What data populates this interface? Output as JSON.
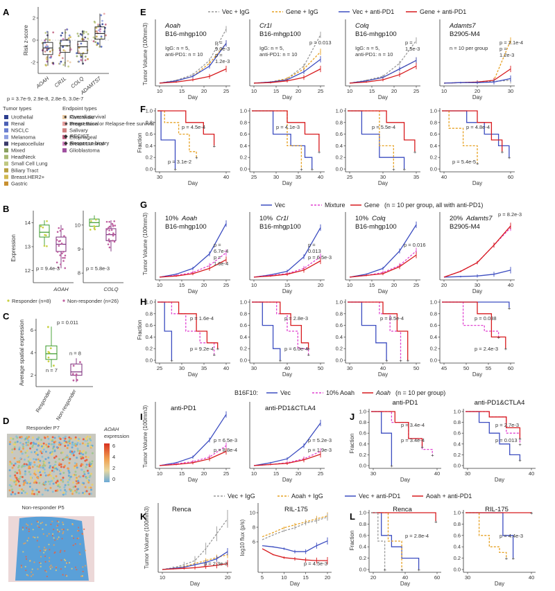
{
  "colors": {
    "vec": "#3b4cc0",
    "gene": "#d7191c",
    "vec_igg": "#999999",
    "gene_igg": "#e6a020",
    "mixture": "#e040d0",
    "box_green": "#3a9a2a",
    "box_purple": "#7a2a7a",
    "grid_axis": "#333333"
  },
  "panels": {
    "A": {
      "label": "A",
      "ylabel": "Risk z-score",
      "genes": [
        "AOAH",
        "CR1L",
        "COLQ",
        "ADAMTS7"
      ],
      "pvals": "p = 3.7e-9, 2.9e-8, 2.8e-5, 3.0e-7",
      "box_stats": [
        {
          "median": -0.7,
          "q1": -1.3,
          "q3": -0.2,
          "lo": -2.3,
          "hi": 0.8
        },
        {
          "median": -0.5,
          "q1": -1.1,
          "q3": 0.0,
          "lo": -2.4,
          "hi": 1.0
        },
        {
          "median": -0.6,
          "q1": -1.2,
          "q3": -0.1,
          "lo": -2.2,
          "hi": 0.9
        },
        {
          "median": 0.6,
          "q1": 0.1,
          "q3": 1.2,
          "lo": -0.6,
          "hi": 2.4
        }
      ],
      "yticks": [
        "2",
        "0",
        "-2"
      ],
      "tumor_types_title": "Tumor types",
      "tumor_types": [
        {
          "name": "Urothelial",
          "color": "#2c3e8f"
        },
        {
          "name": "Renal",
          "color": "#4a5fb5"
        },
        {
          "name": "NSCLC",
          "color": "#6b7fd0"
        },
        {
          "name": "Melanoma",
          "color": "#8d9ee0"
        },
        {
          "name": "Hepatocellular",
          "color": "#3a3a6a"
        },
        {
          "name": "Mixed",
          "color": "#8aa060"
        },
        {
          "name": "HeadNeck",
          "color": "#a8b870"
        },
        {
          "name": "Small Cell Lung",
          "color": "#c0c880"
        },
        {
          "name": "Biliary Tract",
          "color": "#b8a040"
        },
        {
          "name": "Breast.HER2+",
          "color": "#d0b850"
        },
        {
          "name": "Gastric",
          "color": "#c89030"
        },
        {
          "name": "Pancreatic",
          "color": "#e8c8a0"
        },
        {
          "name": "Breast.Basal",
          "color": "#e8a0a0"
        },
        {
          "name": "Salivary",
          "color": "#d08080"
        },
        {
          "name": "Esophageal",
          "color": "#c06080"
        },
        {
          "name": "Breast.Luminal",
          "color": "#d080c0"
        },
        {
          "name": "Glioblastoma",
          "color": "#a050a0"
        }
      ],
      "endpoint_title": "Endpoint types",
      "endpoints": [
        {
          "name": "Overall survival",
          "symbol": "●"
        },
        {
          "name": "Progression or Relapse-free survival",
          "symbol": "★"
        },
        {
          "name": "RECIST",
          "symbol": "◆"
        },
        {
          "name": "Response binary",
          "symbol": "◆"
        }
      ]
    },
    "B": {
      "label": "B",
      "ylabel": "Expression",
      "left": {
        "gene": "AOAH",
        "p": "p = 9.4e-3",
        "yticks": [
          "14",
          "13",
          "12"
        ],
        "ymin": 11.5,
        "ymax": 14.5,
        "responder": {
          "median": 13.6,
          "q1": 13.4,
          "q3": 13.9,
          "lo": 13.0,
          "hi": 14.1
        },
        "nonresponder": {
          "median": 13.1,
          "q1": 12.8,
          "q3": 13.4,
          "lo": 12.1,
          "hi": 13.9
        }
      },
      "right": {
        "gene": "COLQ",
        "p": "p = 5.8e-3",
        "yticks": [
          "10",
          "9",
          "8"
        ],
        "ymin": 7.6,
        "ymax": 10.6,
        "responder": {
          "median": 10.1,
          "q1": 9.95,
          "q3": 10.25,
          "lo": 9.8,
          "hi": 10.4
        },
        "nonresponder": {
          "median": 9.6,
          "q1": 9.35,
          "q3": 9.85,
          "lo": 8.9,
          "hi": 10.2
        }
      },
      "legend_responder": "Responder (n=8)",
      "legend_nonresponder": "Non-responder (n=26)"
    },
    "C": {
      "label": "C",
      "ylabel": "Average spatial expression",
      "p": "p = 0.011",
      "n_r": "n = 7",
      "n_nr": "n = 8",
      "xticks": [
        "Responder",
        "Non-responder"
      ],
      "responder": {
        "median": 3.9,
        "q1": 3.4,
        "q3": 4.6,
        "lo": 2.7,
        "hi": 6.3
      },
      "nonresponder": {
        "median": 2.3,
        "q1": 2.0,
        "q3": 3.0,
        "lo": 1.4,
        "hi": 3.5
      },
      "yticks": [
        "6",
        "4",
        "2"
      ]
    },
    "D": {
      "label": "D",
      "title_r": "Responder P7",
      "title_nr": "Non-responder P5",
      "cbar_title_gene": "AOAH",
      "cbar_title_rest": "expression",
      "cbar_ticks": [
        "6",
        "4",
        "2",
        "0"
      ]
    },
    "E": {
      "label": "E",
      "legend": [
        "Vec + IgG",
        "Gene + IgG",
        "Vec + anti-PD1",
        "Gene + anti-PD1"
      ],
      "ylabel": "Tumor Volume (100mm3)",
      "xlabel": "Day",
      "subplots": [
        {
          "title": "Aoah",
          "model": "B16-mhgp100",
          "note": "IgG: n = 5,",
          "note2": "anti-PD1: n = 10",
          "pvals": [
            "p =",
            "9.0e-3",
            "p =",
            "1.2e-3"
          ],
          "xticks": [
            "10",
            "15",
            "20",
            "25"
          ]
        },
        {
          "title": "Cr1l",
          "model": "B16-mhgp100",
          "note": "IgG: n = 5,",
          "note2": "anti-PD1: n = 10",
          "pvals": [
            "p = 0.013"
          ],
          "xticks": [
            "10",
            "15",
            "20",
            "25"
          ]
        },
        {
          "title": "Colq",
          "model": "B16-mhgp100",
          "note": "IgG: n = 5,",
          "note2": "anti-PD1: n = 10",
          "pvals": [
            "p =",
            "1.5e-3"
          ],
          "xticks": [
            "10",
            "15",
            "20",
            "25"
          ]
        },
        {
          "title": "Adamts7",
          "model": "B2905-M4",
          "note": "n = 10 per group",
          "note2": "",
          "pvals": [
            "p = 2.1e-4",
            "p =",
            "1.2e-3"
          ],
          "xticks": [
            "10",
            "20",
            "30"
          ]
        }
      ]
    },
    "F": {
      "label": "F",
      "ylabel": "Fraction",
      "xlabel": "Day",
      "yticks": [
        "1.0",
        "0.8",
        "0.6",
        "0.4",
        "0.2",
        "0.0"
      ],
      "subplots": [
        {
          "pvals": [
            "p = 4.5e-4",
            "p = 3.1e-2"
          ],
          "xticks": [
            "30",
            "40"
          ]
        },
        {
          "pvals": [
            "p = 4.1e-3"
          ],
          "xticks": [
            "25",
            "30",
            "35",
            "40"
          ]
        },
        {
          "pvals": [
            "p = 5.5e-4"
          ],
          "xticks": [
            "25",
            "30",
            "35"
          ]
        },
        {
          "pvals": [
            "p = 4.8e-4",
            "p = 5.4e-5"
          ],
          "xticks": [
            "40",
            "60"
          ]
        }
      ]
    },
    "G": {
      "label": "G",
      "legend": [
        "Vec",
        "Mixture",
        "Gene"
      ],
      "legend_note": "(n = 10 per group, all with anti-PD1)",
      "ylabel": "Tumor Volume (100mm3)",
      "xlabel": "Day",
      "subplots": [
        {
          "title_pct": "10%",
          "title_gene": "Aoah",
          "model": "B16-mhgp100",
          "pvals": [
            "p =",
            "6.7e-4",
            "p =",
            "1.6e-4"
          ],
          "xticks": [
            "10",
            "15",
            "20",
            "25"
          ]
        },
        {
          "title_pct": "10%",
          "title_gene": "Cr1l",
          "model": "B16-mhgp100",
          "pvals": [
            "p =",
            "0.013",
            "p = 6.5e-3"
          ],
          "xticks": [
            "10",
            "15",
            "20"
          ]
        },
        {
          "title_pct": "10%",
          "title_gene": "Colq",
          "model": "B16-mhgp100",
          "pvals": [
            "p = 0.016"
          ],
          "xticks": [
            "10",
            "15",
            "20",
            "25"
          ]
        },
        {
          "title_pct": "20%",
          "title_gene": "Adamts7",
          "model": "B2905-M4",
          "pvals": [
            "p = 8.2e-3"
          ],
          "xticks": [
            "20",
            "30",
            "40"
          ]
        }
      ]
    },
    "H": {
      "label": "H",
      "ylabel": "Fraction",
      "xlabel": "Day",
      "yticks": [
        "1.0",
        "0.8",
        "0.6",
        "0.4",
        "0.2",
        "0.0"
      ],
      "subplots": [
        {
          "pvals": [
            "p = 1.6e-4",
            "p = 9.2e-4"
          ],
          "xticks": [
            "25",
            "30",
            "35",
            "40"
          ]
        },
        {
          "pvals": [
            "p = 2.8e-3",
            "p = 6.0e-4"
          ],
          "xticks": [
            "30",
            "40",
            "50"
          ]
        },
        {
          "pvals": [
            "p = 8.5e-4"
          ],
          "xticks": [
            "30",
            "40",
            "50"
          ]
        },
        {
          "pvals": [
            "p = 0.038",
            "p = 2.4e-3"
          ],
          "xticks": [
            "45",
            "50",
            "55",
            "60"
          ]
        }
      ]
    },
    "I": {
      "label": "I",
      "header_prefix": "B16F10:",
      "legend": [
        "Vec",
        "10% Aoah",
        "Aoah"
      ],
      "legend_note": "(n = 10 per group)",
      "ylabel": "Tumor Volume (100mm3)",
      "xlabel": "Day",
      "subplots": [
        {
          "title": "anti-PD1",
          "pvals": [
            "p = 6.5e-3",
            "p = 8.8e-4"
          ],
          "xticks": [
            "10",
            "15",
            "20",
            "25"
          ]
        },
        {
          "title": "anti-PD1&CTLA4",
          "pvals": [
            "p = 5.2e-3",
            "p = 1.9e-3"
          ],
          "xticks": [
            "10",
            "15",
            "20",
            "25"
          ]
        }
      ]
    },
    "J": {
      "label": "J",
      "ylabel": "Fraction",
      "xlabel": "Day",
      "yticks": [
        "1.0",
        "0.8",
        "0.6",
        "0.4",
        "0.2",
        "0.0"
      ],
      "subplots": [
        {
          "title": "anti-PD1",
          "pvals": [
            "p = 3.4e-4",
            "p = 3.4e-4"
          ],
          "xticks": [
            "30",
            "40"
          ]
        },
        {
          "title": "anti-PD1&CTLA4",
          "pvals": [
            "p = 2.7e-3",
            "p = 0.013"
          ],
          "xticks": [
            "30",
            "40"
          ]
        }
      ]
    },
    "K": {
      "label": "K",
      "legend": [
        "Vec + IgG",
        "Aoah + IgG",
        "Vec + anti-PD1",
        "Aoah + anti-PD1"
      ],
      "xlabel": "Day",
      "subplots": [
        {
          "title": "Renca",
          "ylabel": "Tumor Volume (100mm3)",
          "pvals": [
            "p = 2.3e-3"
          ],
          "xticks": [
            "10",
            "20"
          ]
        },
        {
          "title": "RIL-175",
          "ylabel": "log10 flux (p/s)",
          "pvals": [
            "p = 4.5e-3"
          ],
          "yticks": [
            "10",
            "8",
            "6"
          ],
          "xticks": [
            "5",
            "10",
            "15",
            "20"
          ]
        }
      ]
    },
    "L": {
      "label": "L",
      "ylabel": "Fraction",
      "xlabel": "Day",
      "yticks": [
        "1.0",
        "0.8",
        "0.6",
        "0.4",
        "0.2",
        "0.0"
      ],
      "subplots": [
        {
          "title": "Renca",
          "pvals": [
            "p = 2.8e-4"
          ],
          "xticks": [
            "20",
            "40",
            "60"
          ]
        },
        {
          "title": "RIL-175",
          "pvals": [
            "p = 4.4e-3"
          ],
          "xticks": [
            "30",
            "40"
          ]
        }
      ]
    }
  }
}
